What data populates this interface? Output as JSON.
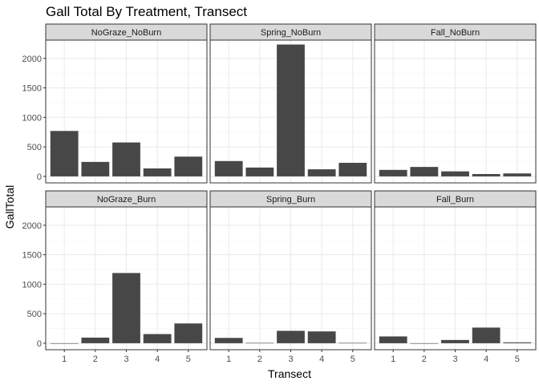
{
  "chart_data": {
    "type": "bar",
    "title": "Gall Total By Treatment, Transect",
    "xlabel": "Transect",
    "ylabel": "GallTotal",
    "categories": [
      "1",
      "2",
      "3",
      "4",
      "5"
    ],
    "y_ticks": [
      0,
      500,
      1000,
      1500,
      2000
    ],
    "ylim": [
      -110,
      2310
    ],
    "grid": true,
    "facet_layout": {
      "rows": 2,
      "cols": 3
    },
    "facets": [
      {
        "name": "NoGraze_NoBurn",
        "values": [
          770,
          245,
          575,
          135,
          335
        ]
      },
      {
        "name": "Spring_NoBurn",
        "values": [
          260,
          150,
          2235,
          120,
          230
        ]
      },
      {
        "name": "Fall_NoBurn",
        "values": [
          110,
          160,
          85,
          40,
          50
        ]
      },
      {
        "name": "NoGraze_Burn",
        "values": [
          0,
          95,
          1190,
          155,
          335
        ]
      },
      {
        "name": "Spring_Burn",
        "values": [
          90,
          5,
          210,
          200,
          5
        ]
      },
      {
        "name": "Fall_Burn",
        "values": [
          115,
          0,
          55,
          265,
          15
        ]
      }
    ],
    "colors": {
      "bar": "#474747",
      "panel_border": "#333333",
      "strip_fill": "#d9d9d9",
      "grid_major": "#ebebeb",
      "grid_minor": "#f5f5f5",
      "tick": "#333333"
    }
  }
}
